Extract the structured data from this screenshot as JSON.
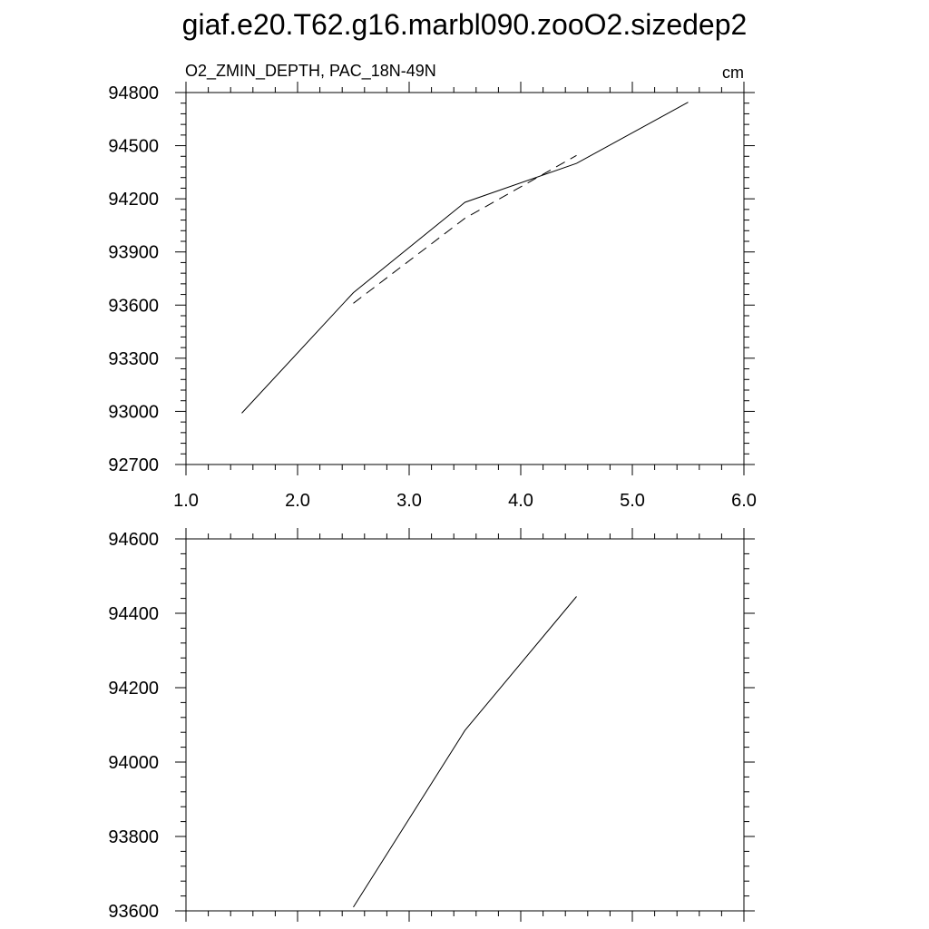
{
  "title": "giaf.e20.T62.g16.marbl090.zooO2.sizedep2",
  "colors": {
    "line": "#000000",
    "frame": "#000000",
    "background": "#ffffff"
  },
  "chart_data": [
    {
      "type": "line",
      "left_label": "O2_ZMIN_DEPTH, PAC_18N-49N",
      "right_label": "cm",
      "xlim": [
        1.0,
        6.0
      ],
      "ylim": [
        92700,
        94800
      ],
      "x_ticks": [
        1.0,
        2.0,
        3.0,
        4.0,
        5.0,
        6.0
      ],
      "x_tick_labels": [
        "1.0",
        "2.0",
        "3.0",
        "4.0",
        "5.0",
        "6.0"
      ],
      "y_ticks": [
        92700,
        93000,
        93300,
        93600,
        93900,
        94200,
        94500,
        94800
      ],
      "y_tick_labels": [
        "92700",
        "93000",
        "93300",
        "93600",
        "93900",
        "94200",
        "94500",
        "94800"
      ],
      "grid": false,
      "series": [
        {
          "style": "solid",
          "x": [
            1.5,
            2.5,
            3.5,
            4.5,
            5.5
          ],
          "y": [
            92990,
            93670,
            94180,
            94400,
            94745
          ]
        },
        {
          "style": "dashed",
          "x": [
            2.5,
            3.5,
            4.5
          ],
          "y": [
            93610,
            94090,
            94445
          ]
        }
      ]
    },
    {
      "type": "line",
      "xlim": [
        1.0,
        6.0
      ],
      "ylim": [
        93600,
        94600
      ],
      "x_ticks": [
        1.0,
        2.0,
        3.0,
        4.0,
        5.0,
        6.0
      ],
      "y_ticks": [
        93600,
        93800,
        94000,
        94200,
        94400,
        94600
      ],
      "y_tick_labels": [
        "93600",
        "93800",
        "94000",
        "94200",
        "94400",
        "94600"
      ],
      "grid": false,
      "series": [
        {
          "style": "solid",
          "x": [
            2.5,
            3.5,
            4.5
          ],
          "y": [
            93610,
            94085,
            94445
          ]
        }
      ]
    }
  ]
}
